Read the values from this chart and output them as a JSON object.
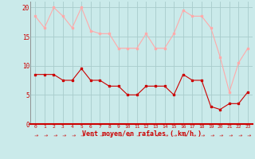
{
  "hours": [
    0,
    1,
    2,
    3,
    4,
    5,
    6,
    7,
    8,
    9,
    10,
    11,
    12,
    13,
    14,
    15,
    16,
    17,
    18,
    19,
    20,
    21,
    22,
    23
  ],
  "vent_moyen": [
    8.5,
    8.5,
    8.5,
    7.5,
    7.5,
    9.5,
    7.5,
    7.5,
    6.5,
    6.5,
    5.0,
    5.0,
    6.5,
    6.5,
    6.5,
    5.0,
    8.5,
    7.5,
    7.5,
    3.0,
    2.5,
    3.5,
    3.5,
    5.5
  ],
  "rafales": [
    18.5,
    16.5,
    20.0,
    18.5,
    16.5,
    20.0,
    16.0,
    15.5,
    15.5,
    13.0,
    13.0,
    13.0,
    15.5,
    13.0,
    13.0,
    15.5,
    19.5,
    18.5,
    18.5,
    16.5,
    11.5,
    5.5,
    10.5,
    13.0
  ],
  "color_moyen": "#cc0000",
  "color_rafales": "#ffaaaa",
  "bg_color": "#caeaea",
  "grid_color": "#a8cccc",
  "xlabel": "Vent moyen/en rafales ( km/h )",
  "ylim": [
    0,
    21
  ],
  "yticks": [
    0,
    5,
    10,
    15,
    20
  ],
  "xticks": [
    0,
    1,
    2,
    3,
    4,
    5,
    6,
    7,
    8,
    9,
    10,
    11,
    12,
    13,
    14,
    15,
    16,
    17,
    18,
    19,
    20,
    21,
    22,
    23
  ],
  "marker": "s",
  "linewidth": 0.8,
  "markersize": 2.0
}
